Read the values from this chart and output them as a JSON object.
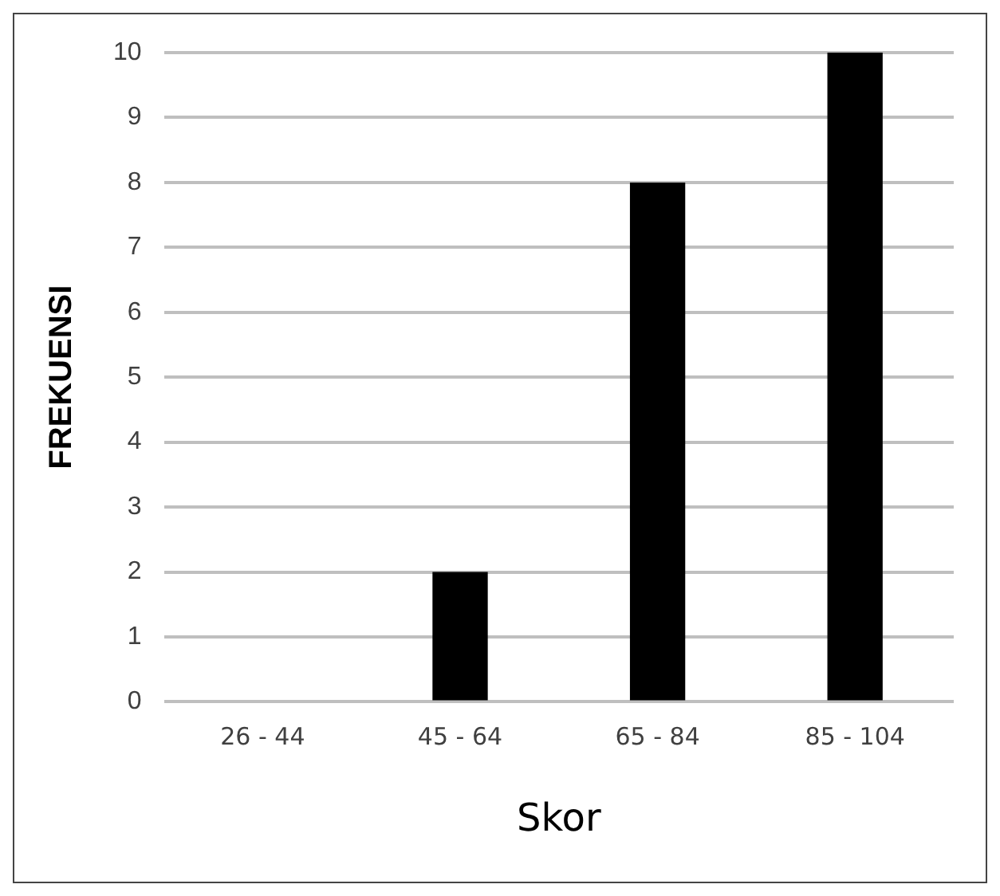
{
  "chart_data": {
    "type": "bar",
    "xlabel": "Skor",
    "ylabel": "FREKUENSI",
    "categories": [
      "26 - 44",
      "45 - 64",
      "65 - 84",
      "85 - 104"
    ],
    "values": [
      0,
      2,
      8,
      10
    ],
    "color": "#000000",
    "ylim": [
      0,
      10
    ],
    "yticks": [
      0,
      1,
      2,
      3,
      4,
      5,
      6,
      7,
      8,
      9,
      10
    ],
    "grid": "y"
  }
}
